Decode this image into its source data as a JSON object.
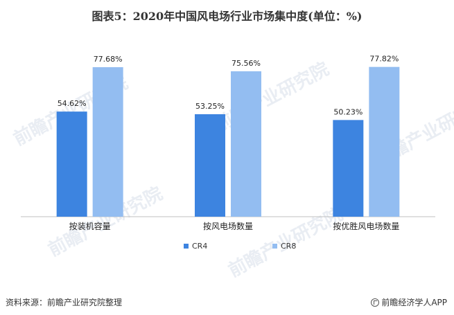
{
  "title": "图表5：2020年中国风电场行业市场集中度(单位：%)",
  "watermark": "前瞻产业研究院",
  "footer": {
    "source": "资料来源：前瞻产业研究院整理",
    "brand": "前瞻经济学人APP"
  },
  "colors": {
    "cr4": "#3d84e0",
    "cr8": "#93bdf1",
    "axis": "#bfbfbf"
  },
  "chart_data": {
    "type": "bar",
    "categories": [
      "按装机容量",
      "按风电场数量",
      "按优胜风电场数量"
    ],
    "series": [
      {
        "name": "CR4",
        "values": [
          54.62,
          53.25,
          50.23
        ],
        "labels": [
          "54.62%",
          "53.25%",
          "50.23%"
        ]
      },
      {
        "name": "CR8",
        "values": [
          77.68,
          75.56,
          77.82
        ],
        "labels": [
          "77.68%",
          "75.56%",
          "77.82%"
        ]
      }
    ],
    "ylim": [
      0,
      100
    ],
    "legend": "bottom-center",
    "grid": false
  }
}
